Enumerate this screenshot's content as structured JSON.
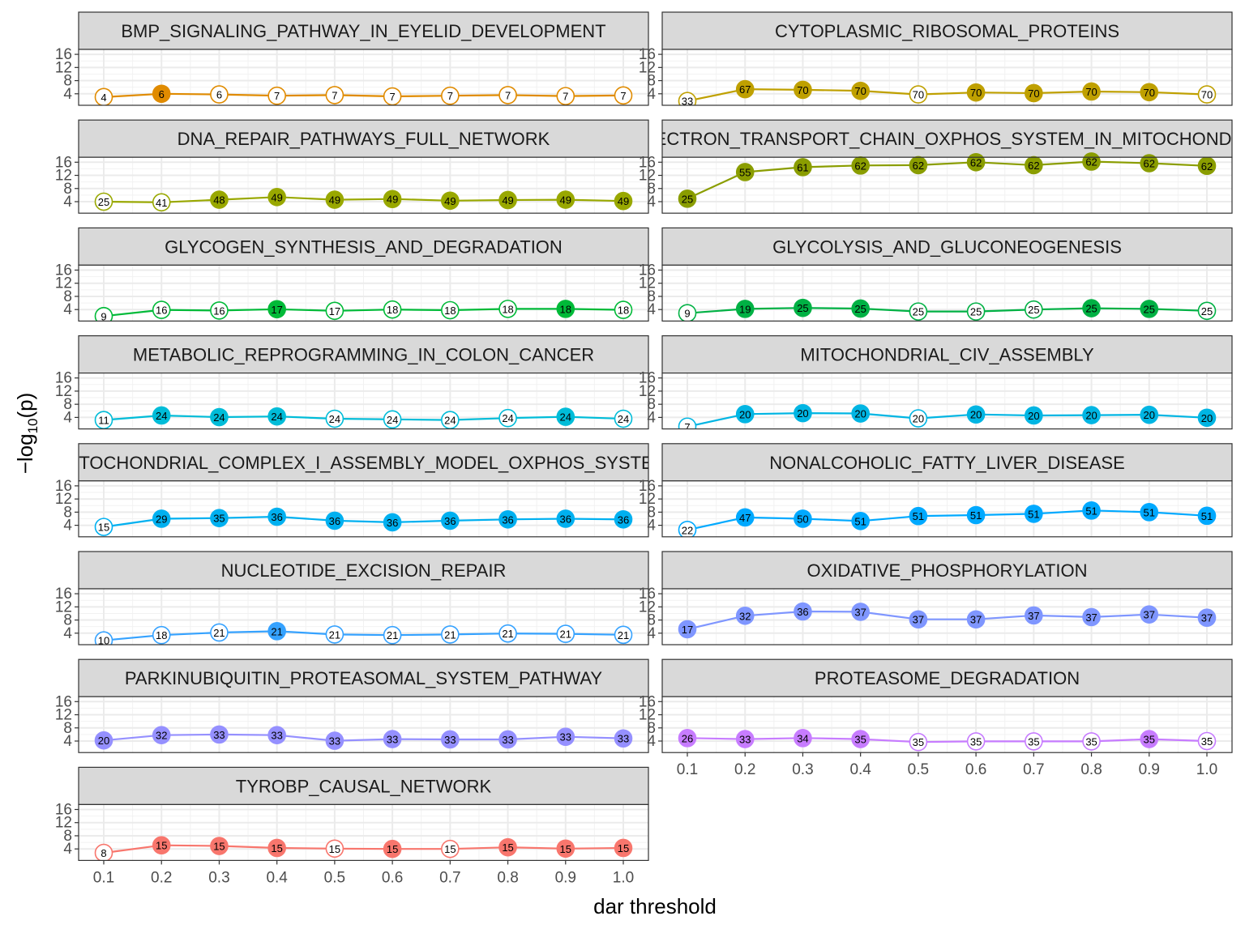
{
  "chart_data": {
    "type": "line",
    "xlabel": "dar threshold",
    "ylabel_prefix": "−log",
    "ylabel_sub": "10",
    "ylabel_suffix": "(p)",
    "x": [
      0.1,
      0.2,
      0.3,
      0.4,
      0.5,
      0.6,
      0.7,
      0.8,
      0.9,
      1.0
    ],
    "x_tick_labels": [
      "0.1",
      "0.2",
      "0.3",
      "0.4",
      "0.5",
      "0.6",
      "0.7",
      "0.8",
      "0.9",
      "1.0"
    ],
    "y_ticks": [
      4,
      8,
      12,
      16
    ],
    "ylim": [
      0.5,
      17.5
    ],
    "grid": true,
    "facets": [
      {
        "name": "BMP_SIGNALING_PATHWAY_IN_EYELID_DEVELOPMENT",
        "color": "#E08B00",
        "y": [
          3.0,
          4.0,
          3.8,
          3.4,
          3.6,
          3.2,
          3.4,
          3.6,
          3.3,
          3.5
        ],
        "labels": [
          4,
          6,
          6,
          7,
          7,
          7,
          7,
          7,
          7,
          7
        ],
        "filled": [
          false,
          true,
          false,
          false,
          false,
          false,
          false,
          false,
          false,
          false
        ]
      },
      {
        "name": "CYTOPLASMIC_RIBOSOMAL_PROTEINS",
        "color": "#BFA000",
        "y": [
          1.8,
          5.4,
          5.2,
          4.9,
          3.8,
          4.4,
          4.2,
          4.7,
          4.5,
          3.8
        ],
        "labels": [
          33,
          67,
          70,
          70,
          70,
          70,
          70,
          70,
          70,
          70
        ],
        "filled": [
          false,
          true,
          true,
          true,
          false,
          true,
          true,
          true,
          true,
          false
        ]
      },
      {
        "name": "DNA_REPAIR_PATHWAYS_FULL_NETWORK",
        "color": "#99A800",
        "y": [
          4.0,
          3.8,
          4.6,
          5.4,
          4.6,
          4.8,
          4.3,
          4.5,
          4.6,
          4.2
        ],
        "labels": [
          25,
          41,
          48,
          49,
          49,
          49,
          49,
          49,
          49,
          49
        ],
        "filled": [
          false,
          false,
          true,
          true,
          true,
          true,
          true,
          true,
          true,
          true
        ]
      },
      {
        "name": "ELECTRON_TRANSPORT_CHAIN_OXPHOS_SYSTEM_IN_MITOCHONDRIA",
        "color": "#8A9D00",
        "y": [
          4.9,
          13.0,
          14.5,
          15.0,
          15.1,
          16.0,
          15.1,
          16.2,
          15.7,
          14.9
        ],
        "labels": [
          25,
          55,
          61,
          62,
          62,
          62,
          62,
          62,
          62,
          62
        ],
        "filled": [
          true,
          true,
          true,
          true,
          true,
          true,
          true,
          true,
          true,
          true
        ]
      },
      {
        "name": "GLYCOGEN_SYNTHESIS_AND_DEGRADATION",
        "color": "#00BA38",
        "y": [
          2.0,
          3.9,
          3.7,
          4.1,
          3.6,
          4.0,
          3.8,
          4.2,
          4.2,
          3.9
        ],
        "labels": [
          9,
          16,
          16,
          17,
          17,
          18,
          18,
          18,
          18,
          18
        ],
        "filled": [
          false,
          false,
          false,
          true,
          false,
          false,
          false,
          false,
          true,
          false
        ]
      },
      {
        "name": "GLYCOLYSIS_AND_GLUCONEOGENESIS",
        "color": "#00B144",
        "y": [
          2.9,
          4.2,
          4.5,
          4.3,
          3.4,
          3.4,
          4.0,
          4.4,
          4.2,
          3.6
        ],
        "labels": [
          9,
          19,
          25,
          25,
          25,
          25,
          25,
          25,
          25,
          25
        ],
        "filled": [
          false,
          true,
          true,
          true,
          false,
          false,
          false,
          true,
          true,
          false
        ]
      },
      {
        "name": "METABOLIC_REPROGRAMMING_IN_COLON_CANCER",
        "color": "#00BCD8",
        "y": [
          3.2,
          4.6,
          4.1,
          4.3,
          3.6,
          3.4,
          3.2,
          3.8,
          4.2,
          3.6
        ],
        "labels": [
          11,
          24,
          24,
          24,
          24,
          24,
          24,
          24,
          24,
          24
        ],
        "filled": [
          false,
          true,
          true,
          true,
          false,
          false,
          false,
          false,
          true,
          false
        ]
      },
      {
        "name": "MITOCHONDRIAL_CIV_ASSEMBLY",
        "color": "#00B5E3",
        "y": [
          1.2,
          5.0,
          5.3,
          5.2,
          3.7,
          4.9,
          4.6,
          4.7,
          4.8,
          3.9
        ],
        "labels": [
          7,
          20,
          20,
          20,
          20,
          20,
          20,
          20,
          20,
          20
        ],
        "filled": [
          false,
          true,
          true,
          true,
          false,
          true,
          true,
          true,
          true,
          true
        ]
      },
      {
        "name": "MITOCHONDRIAL_COMPLEX_I_ASSEMBLY_MODEL_OXPHOS_SYSTEM",
        "color": "#00B0F0",
        "y": [
          3.5,
          6.0,
          6.2,
          6.6,
          5.4,
          4.9,
          5.4,
          5.8,
          6.0,
          5.8
        ],
        "labels": [
          15,
          29,
          35,
          36,
          36,
          36,
          36,
          36,
          36,
          36
        ],
        "filled": [
          false,
          true,
          true,
          true,
          true,
          true,
          true,
          true,
          true,
          true
        ]
      },
      {
        "name": "NONALCOHOLIC_FATTY_LIVER_DISEASE",
        "color": "#00A9FF",
        "y": [
          2.6,
          6.4,
          6.0,
          5.3,
          6.8,
          7.1,
          7.5,
          8.5,
          8.0,
          6.9
        ],
        "labels": [
          22,
          47,
          50,
          51,
          51,
          51,
          51,
          51,
          51,
          51
        ],
        "filled": [
          false,
          true,
          true,
          true,
          true,
          true,
          true,
          true,
          true,
          true
        ]
      },
      {
        "name": "NUCLEOTIDE_EXCISION_REPAIR",
        "color": "#35A2FF",
        "y": [
          1.8,
          3.4,
          4.2,
          4.6,
          3.6,
          3.4,
          3.6,
          3.9,
          3.8,
          3.5
        ],
        "labels": [
          10,
          18,
          21,
          21,
          21,
          21,
          21,
          21,
          21,
          21
        ],
        "filled": [
          false,
          false,
          false,
          true,
          false,
          false,
          false,
          false,
          false,
          false
        ]
      },
      {
        "name": "OXIDATIVE_PHOSPHORYLATION",
        "color": "#7F96FF",
        "y": [
          5.2,
          9.3,
          10.6,
          10.5,
          8.2,
          8.2,
          9.4,
          8.9,
          9.7,
          8.7
        ],
        "labels": [
          17,
          32,
          36,
          37,
          37,
          37,
          37,
          37,
          37,
          37
        ],
        "filled": [
          true,
          true,
          true,
          true,
          true,
          true,
          true,
          true,
          true,
          true
        ]
      },
      {
        "name": "PARKINUBIQUITIN_PROTEASOMAL_SYSTEM_PATHWAY",
        "color": "#9590FF",
        "y": [
          4.2,
          5.8,
          6.0,
          5.8,
          4.1,
          4.6,
          4.5,
          4.5,
          5.3,
          4.8
        ],
        "labels": [
          20,
          32,
          33,
          33,
          33,
          33,
          33,
          33,
          33,
          33
        ],
        "filled": [
          true,
          true,
          true,
          true,
          true,
          true,
          true,
          true,
          true,
          true
        ]
      },
      {
        "name": "PROTEASOME_DEGRADATION",
        "color": "#C77CFF",
        "y": [
          4.9,
          4.6,
          4.9,
          4.6,
          3.7,
          3.9,
          3.9,
          3.9,
          4.6,
          4.0
        ],
        "labels": [
          26,
          33,
          34,
          35,
          35,
          35,
          35,
          35,
          35,
          35
        ],
        "filled": [
          true,
          true,
          true,
          true,
          false,
          false,
          false,
          false,
          true,
          false
        ]
      },
      {
        "name": "TYROBP_CAUSAL_NETWORK",
        "color": "#F8766D",
        "y": [
          2.8,
          5.1,
          4.9,
          4.3,
          4.1,
          4.0,
          4.0,
          4.5,
          4.1,
          4.3
        ],
        "labels": [
          8,
          15,
          15,
          15,
          15,
          15,
          15,
          15,
          15,
          15
        ],
        "filled": [
          false,
          true,
          true,
          true,
          false,
          true,
          false,
          true,
          true,
          true
        ]
      }
    ]
  }
}
